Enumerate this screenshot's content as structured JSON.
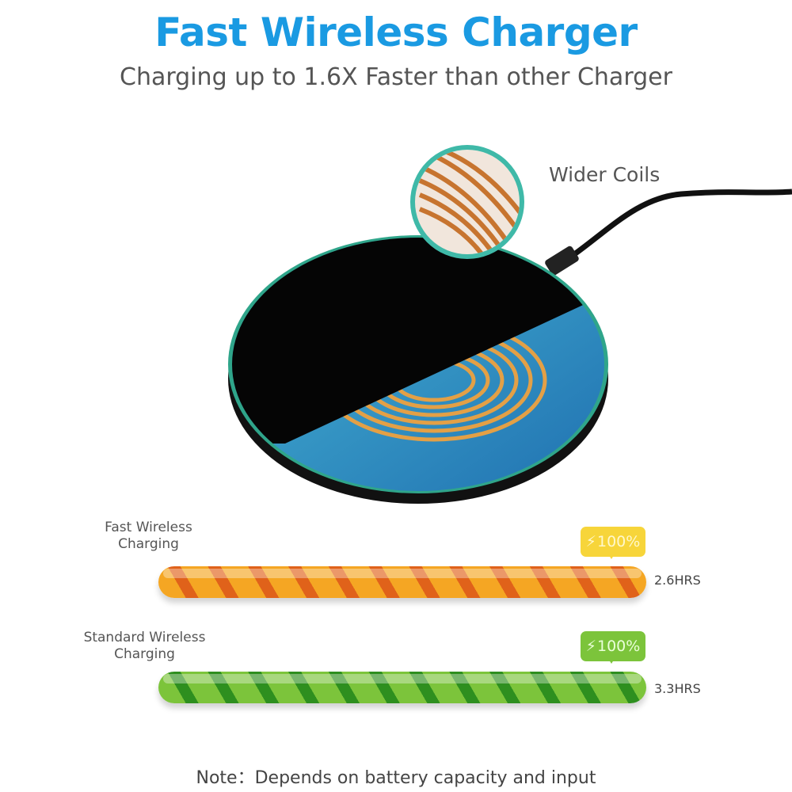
{
  "header": {
    "title": "Fast Wireless Charger",
    "subtitle": "Charging up to 1.6X Faster than other Charger"
  },
  "product": {
    "coil_callout": "Wider Coils"
  },
  "comparison": [
    {
      "label_line1": "Fast Wireless",
      "label_line2": "Charging",
      "badge": "100%",
      "time": "2.6HRS",
      "color": "#f5a623",
      "stripe_color": "#e0621a",
      "progress": 1.0
    },
    {
      "label_line1": "Standard Wireless",
      "label_line2": "Charging",
      "badge": "100%",
      "time": "3.3HRS",
      "color": "#7cc43b",
      "stripe_color": "#2e8f1f",
      "progress": 1.0
    }
  ],
  "footer": {
    "note": "Note：Depends on battery capacity and input"
  },
  "colors": {
    "title": "#1a9ae2",
    "rim": "#2fa58a"
  }
}
